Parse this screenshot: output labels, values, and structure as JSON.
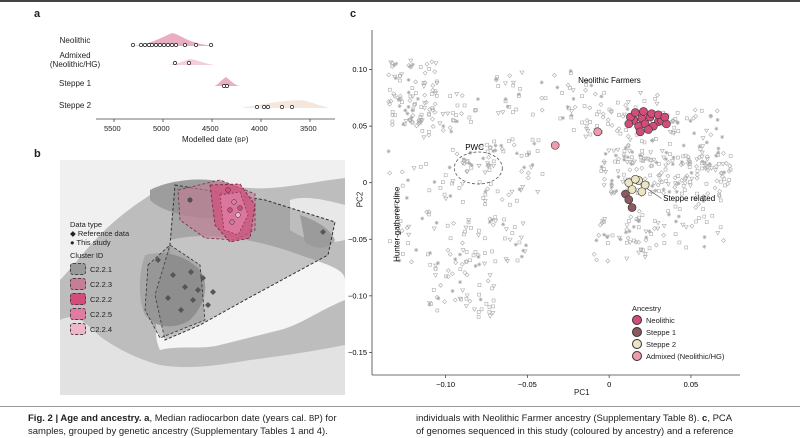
{
  "panels": {
    "a": "a",
    "b": "b",
    "c": "c"
  },
  "panel_a": {
    "rows": [
      "Neolithic",
      "Admixed\n(Neolithic/HG)",
      "Steppe 1",
      "Steppe 2"
    ],
    "x_ticks": [
      "5500",
      "5000",
      "4500",
      "4000",
      "3500"
    ],
    "x_label": "Modelled date (",
    "x_label_unit": "BP",
    "x_label_end": ")"
  },
  "panel_b": {
    "legend_data_type_title": "Data type",
    "legend_data_types": [
      "Reference data",
      "This study"
    ],
    "legend_cluster_title": "Cluster ID",
    "clusters": [
      "C2.2.1",
      "C2.2.3",
      "C2.2.2",
      "C2.2.5",
      "C2.2.4"
    ],
    "cluster_colors": [
      "#9a9a9a",
      "#c87d97",
      "#d34d7b",
      "#e07ca2",
      "#efb5c8"
    ]
  },
  "chart_data": {
    "type": "scatter",
    "xlabel": "PC1",
    "ylabel": "PC2",
    "xlim": [
      -0.145,
      0.08
    ],
    "ylim": [
      -0.17,
      0.135
    ],
    "x_ticks": [
      "−0.10",
      "−0.05",
      "0",
      "0.05"
    ],
    "y_ticks": [
      "0.10",
      "0.05",
      "0",
      "−0.05",
      "−0.10",
      "−0.15"
    ],
    "annotations": [
      "Neolithic Farmers",
      "PWC",
      "Steppe related",
      "Hunter-gatherer cline"
    ],
    "legend_title": "Ancestry",
    "series": [
      {
        "name": "Neolithic",
        "color": "#d34d7b",
        "points": [
          [
            0.015,
            0.055
          ],
          [
            0.02,
            0.057
          ],
          [
            0.025,
            0.058
          ],
          [
            0.03,
            0.054
          ],
          [
            0.018,
            0.05
          ],
          [
            0.022,
            0.052
          ],
          [
            0.027,
            0.05
          ],
          [
            0.032,
            0.055
          ],
          [
            0.035,
            0.052
          ],
          [
            0.013,
            0.058
          ],
          [
            0.016,
            0.062
          ],
          [
            0.021,
            0.063
          ],
          [
            0.026,
            0.061
          ],
          [
            0.03,
            0.06
          ],
          [
            0.012,
            0.052
          ],
          [
            0.034,
            0.058
          ],
          [
            0.024,
            0.047
          ],
          [
            0.019,
            0.045
          ]
        ]
      },
      {
        "name": "Steppe 1",
        "color": "#8a5a60",
        "points": [
          [
            0.01,
            -0.01
          ],
          [
            0.012,
            -0.015
          ],
          [
            0.014,
            -0.022
          ]
        ]
      },
      {
        "name": "Steppe 2",
        "color": "#ece5c4",
        "points": [
          [
            0.012,
            0.0
          ],
          [
            0.018,
            0.002
          ],
          [
            0.022,
            -0.002
          ],
          [
            0.014,
            -0.006
          ],
          [
            0.02,
            -0.008
          ],
          [
            0.016,
            0.003
          ]
        ]
      },
      {
        "name": "Admixed (Neolithic/HG)",
        "color": "#ef9aae",
        "points": [
          [
            -0.007,
            0.045
          ],
          [
            -0.033,
            0.033
          ]
        ]
      }
    ]
  },
  "caption": {
    "left_bold": "Fig. 2 | Age and ancestry. a",
    "left_line1": ", Median radiocarbon date (years cal. ",
    "left_line1_unit": "BP",
    "left_line1_end": ") for",
    "left_line2": "samples, grouped by genetic ancestry (Supplementary Tables 1 and 4).",
    "right_line1": "individuals with Neolithic Farmer ancestry (Supplementary Table 8). ",
    "right_line1_bold": "c",
    "right_line1_end": ", PCA",
    "right_line2": "of genomes sequenced in this study (coloured by ancestry) and a reference"
  }
}
